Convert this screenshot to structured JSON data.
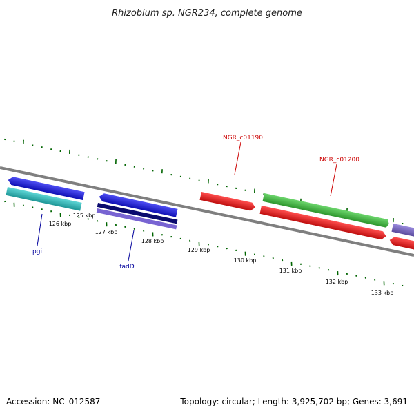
{
  "title": "Rhizobium sp. NGR234, complete genome",
  "footer": {
    "accession": "Accession: NC_012587",
    "topology": "Topology: circular; Length: 3,925,702 bp; Genes: 3,691"
  },
  "colors": {
    "backbone": "#7f7f7f",
    "tick": "#006400",
    "label_red": "#cc0000",
    "label_blue": "#00009c",
    "gene_red": "#ff1414",
    "gene_green": "#3cc83c",
    "gene_blue": "#1414f0",
    "gene_cyan": "#28c8c8",
    "gene_navy": "#0a0a6e",
    "gene_purple": "#7864d2"
  },
  "scale": {
    "ticks": [
      {
        "label": "125 kbp"
      },
      {
        "label": "126 kbp"
      },
      {
        "label": "127 kbp"
      },
      {
        "label": "128 kbp"
      },
      {
        "label": "129 kbp"
      },
      {
        "label": "130 kbp"
      },
      {
        "label": "131 kbp"
      },
      {
        "label": "132 kbp"
      },
      {
        "label": "133 kbp"
      }
    ]
  },
  "gene_labels": [
    {
      "text": "NGR_c01190",
      "color": "red"
    },
    {
      "text": "NGR_c01200",
      "color": "red"
    },
    {
      "text": "pgi",
      "color": "blue"
    },
    {
      "text": "fadD",
      "color": "blue"
    }
  ]
}
